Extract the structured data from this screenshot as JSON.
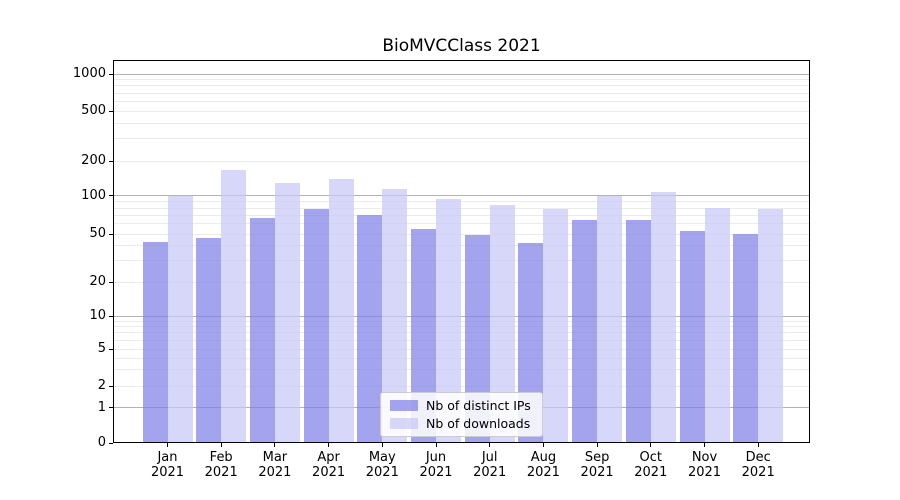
{
  "title": "BioMVCClass 2021",
  "chart_data": {
    "type": "bar",
    "title": "BioMVCClass 2021",
    "categories": [
      "Jan 2021",
      "Feb 2021",
      "Mar 2021",
      "Apr 2021",
      "May 2021",
      "Jun 2021",
      "Jul 2021",
      "Aug 2021",
      "Sep 2021",
      "Oct 2021",
      "Nov 2021",
      "Dec 2021"
    ],
    "series": [
      {
        "name": "Nb of distinct IPs",
        "color": "rgba(128,128,232,0.72)",
        "values": [
          43,
          46,
          67,
          78,
          70,
          55,
          49,
          42,
          64,
          64,
          53,
          50
        ]
      },
      {
        "name": "Nb of downloads",
        "color": "rgba(199,199,246,0.72)",
        "values": [
          100,
          168,
          128,
          140,
          115,
          95,
          84,
          79,
          100,
          107,
          80,
          78
        ]
      }
    ],
    "xlabel": "",
    "ylabel": "",
    "yscale": "symlog",
    "y_ticks": [
      0,
      1,
      2,
      5,
      10,
      20,
      50,
      100,
      200,
      500,
      1000
    ],
    "ylim": [
      0,
      1300
    ],
    "grid": "horizontal major and minor",
    "legend_position": "lower center"
  },
  "legend": {
    "items": [
      {
        "label": "Nb of distinct IPs"
      },
      {
        "label": "Nb of downloads"
      }
    ]
  },
  "colors": {
    "bar_distinct_ips": "rgba(128,128,232,0.72)",
    "bar_downloads": "rgba(199,199,246,0.72)",
    "major_grid": "#b3b3b3",
    "minor_grid": "#ebebeb",
    "axis": "#000000",
    "legend_border": "#cccccc"
  }
}
